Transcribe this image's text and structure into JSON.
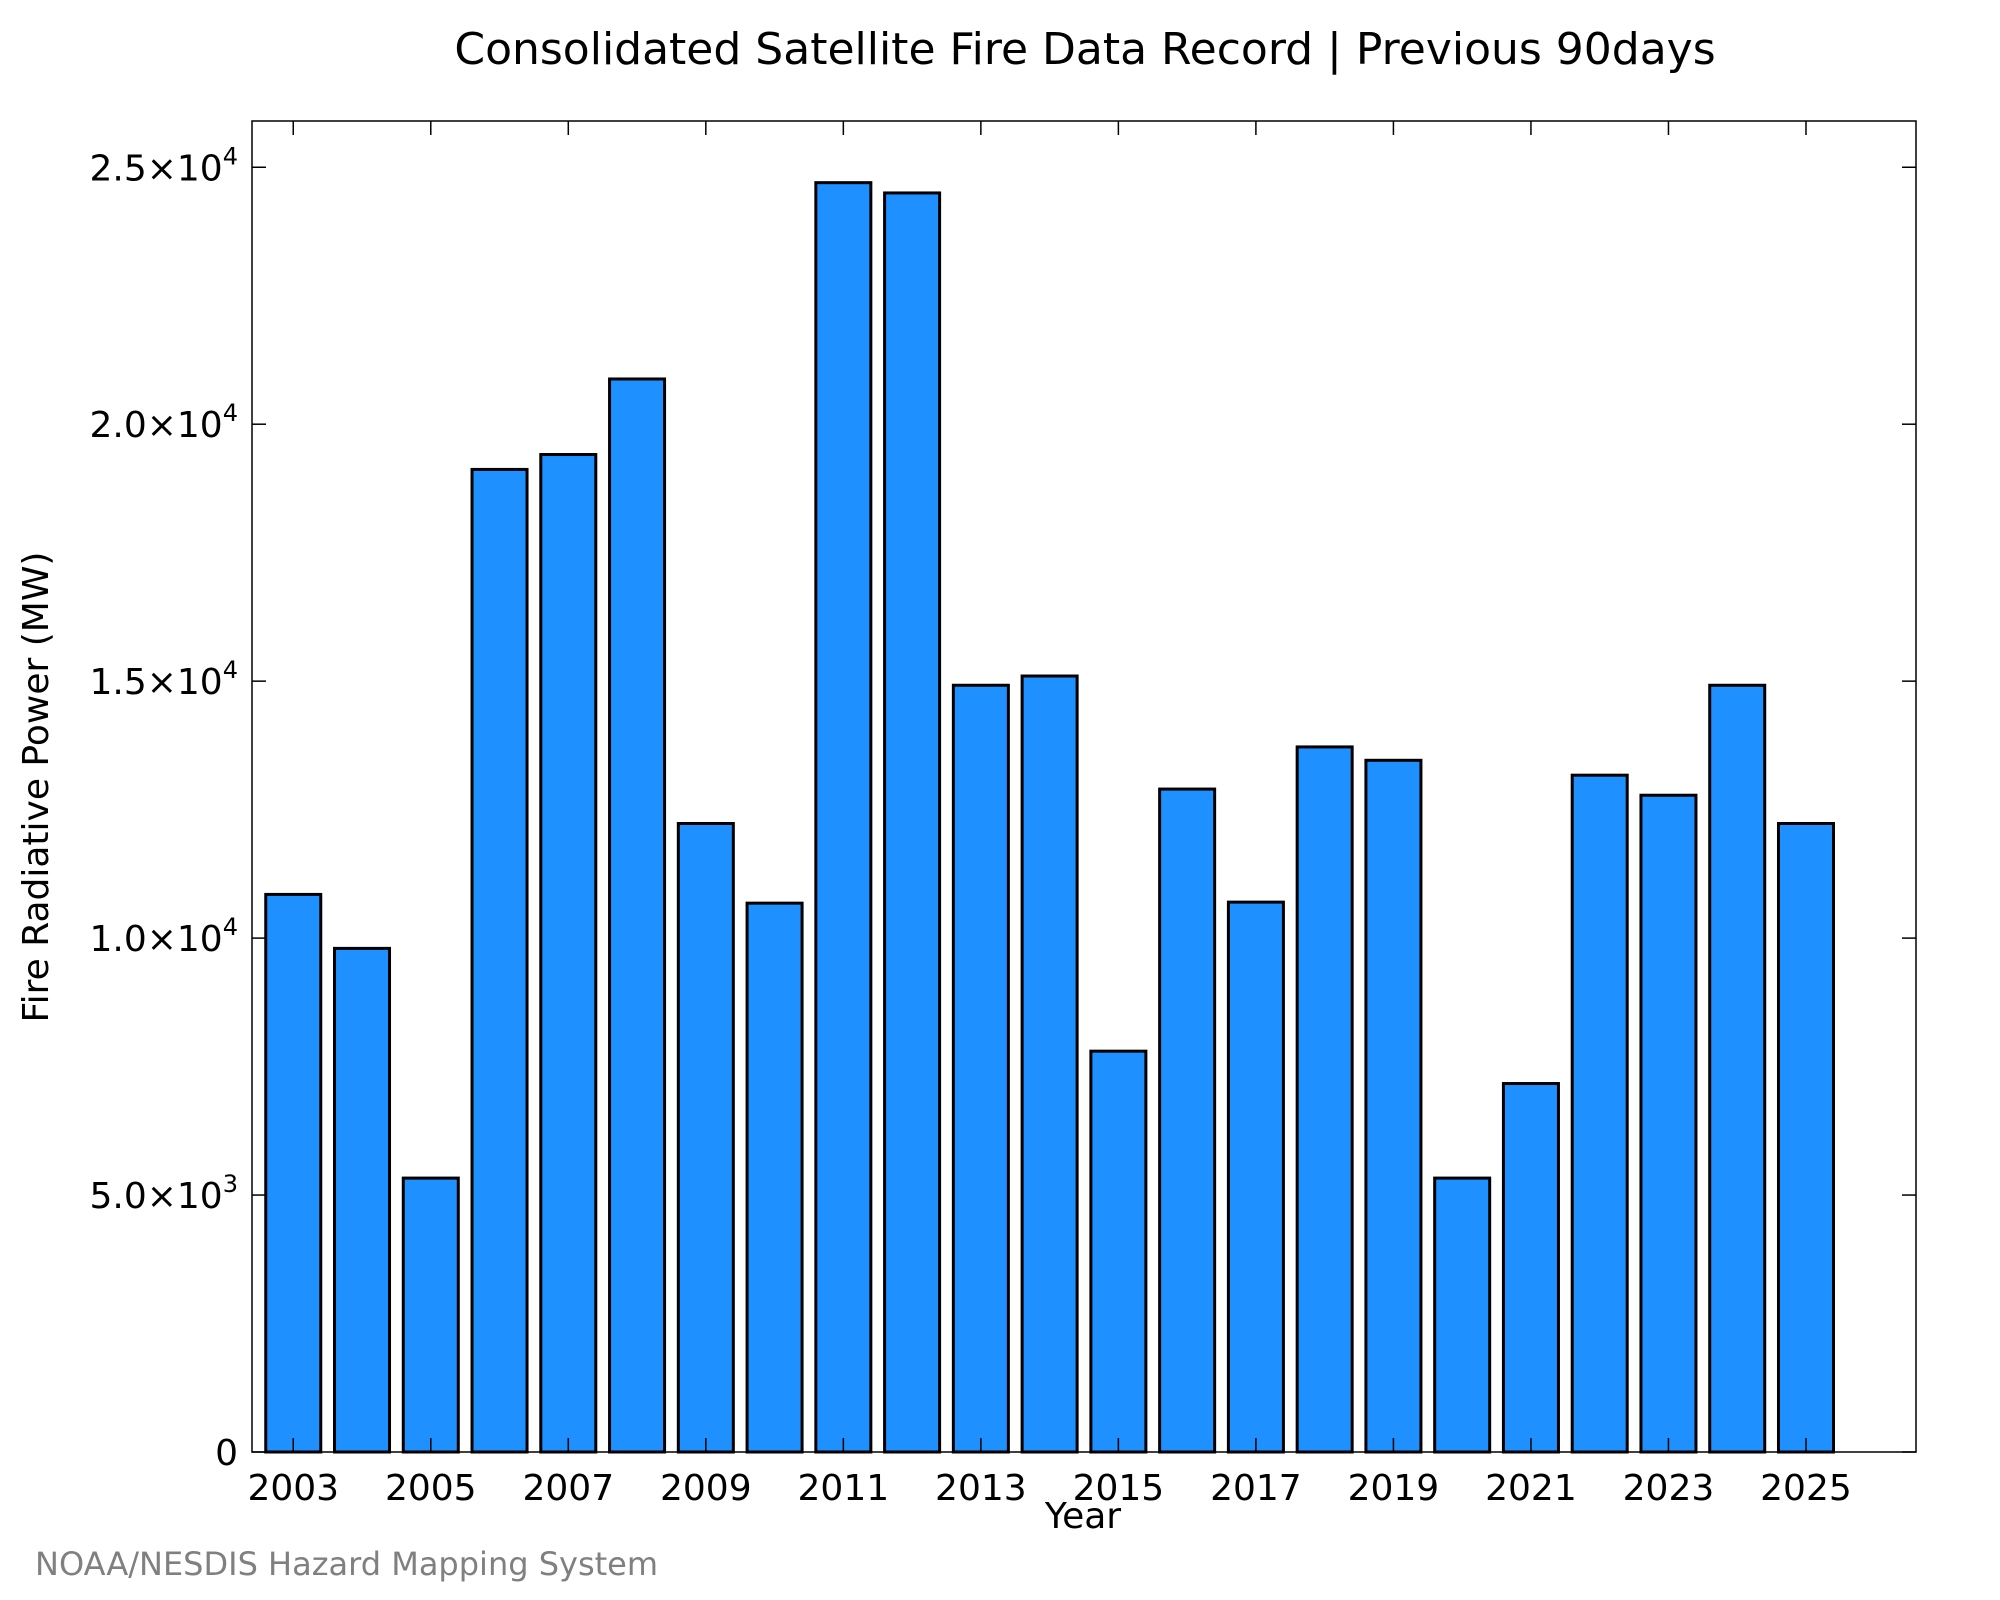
{
  "chart_data": {
    "type": "bar",
    "title": "Consolidated Satellite Fire Data Record | Previous 90days",
    "xlabel": "Year",
    "ylabel": "Fire Radiative Power (MW)",
    "categories": [
      "2003",
      "2004",
      "2005",
      "2006",
      "2007",
      "2008",
      "2009",
      "2010",
      "2011",
      "2012",
      "2013",
      "2014",
      "2015",
      "2016",
      "2017",
      "2018",
      "2019",
      "2020",
      "2021",
      "2022",
      "2023",
      "2024",
      "2025"
    ],
    "values": [
      10850,
      9800,
      5330,
      19120,
      19410,
      20880,
      12230,
      10680,
      24700,
      24500,
      14920,
      15100,
      7800,
      12900,
      10700,
      13720,
      13460,
      5330,
      7170,
      13170,
      12780,
      14920,
      12230
    ],
    "xtick_labels": [
      "2003",
      "2005",
      "2007",
      "2009",
      "2011",
      "2013",
      "2015",
      "2017",
      "2019",
      "2021",
      "2023",
      "2025"
    ],
    "ytick_labels": [
      {
        "value": 0,
        "mantissa": "0",
        "exponent": ""
      },
      {
        "value": 5000,
        "mantissa": "5.0×10",
        "exponent": "3"
      },
      {
        "value": 10000,
        "mantissa": "1.0×10",
        "exponent": "4"
      },
      {
        "value": 15000,
        "mantissa": "1.5×10",
        "exponent": "4"
      },
      {
        "value": 20000,
        "mantissa": "2.0×10",
        "exponent": "4"
      },
      {
        "value": 25000,
        "mantissa": "2.5×10",
        "exponent": "4"
      }
    ],
    "ylim": [
      0,
      25900
    ],
    "xlim": [
      2002.4,
      2026.6
    ],
    "grid": false,
    "legend": "none",
    "bar_color": "#1e90ff",
    "edge_color": "#000000"
  },
  "footer": {
    "credit": "NOAA/NESDIS Hazard Mapping System"
  }
}
